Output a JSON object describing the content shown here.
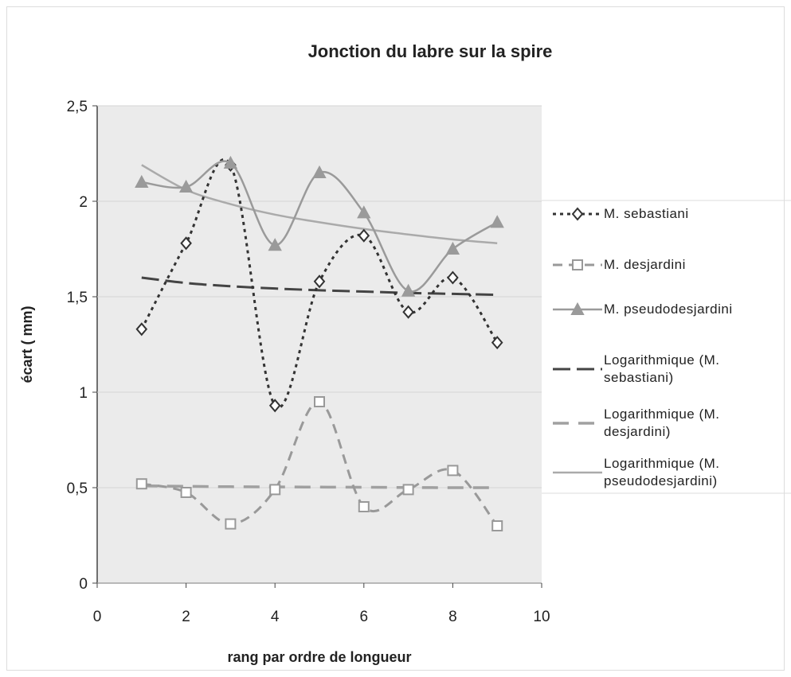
{
  "chart_data": {
    "type": "line",
    "title": "Jonction du labre sur la spire",
    "xlabel": "rang par ordre de longueur",
    "ylabel": "écart ( mm)",
    "x": [
      1,
      2,
      3,
      4,
      5,
      6,
      7,
      8,
      9
    ],
    "xlim": [
      0,
      10
    ],
    "xticks": [
      0,
      2,
      4,
      6,
      8,
      10
    ],
    "ylim": [
      0,
      2.5
    ],
    "yticks": [
      0,
      {
        "value": 0.5,
        "label": "0,5"
      },
      1,
      {
        "value": 1.5,
        "label": "1,5"
      },
      2,
      {
        "value": 2.5,
        "label": "2,5"
      }
    ],
    "grid": true,
    "legend": "right",
    "series": [
      {
        "name": "M. sebastiani",
        "color": "#333333",
        "dash": "4 5",
        "marker": "diamond",
        "width": 3,
        "values": [
          1.33,
          1.78,
          2.19,
          0.93,
          1.58,
          1.82,
          1.42,
          1.6,
          1.26
        ]
      },
      {
        "name": "M. desjardini",
        "color": "#999999",
        "dash": "12 8",
        "marker": "square",
        "width": 3,
        "values": [
          0.52,
          0.475,
          0.31,
          0.49,
          0.95,
          0.4,
          0.49,
          0.59,
          0.3
        ]
      },
      {
        "name": "M. pseudodesjardini",
        "color": "#9a9a9a",
        "dash": "",
        "marker": "triangle",
        "width": 2.5,
        "values": [
          2.1,
          2.075,
          2.2,
          1.77,
          2.15,
          1.94,
          1.53,
          1.75,
          1.89
        ]
      },
      {
        "name": "Logarithmique (M. sebastiani)",
        "color": "#444444",
        "dash": "22 8",
        "marker": null,
        "width": 3,
        "values": [
          1.6,
          1.572,
          1.555,
          1.543,
          1.534,
          1.527,
          1.52,
          1.515,
          1.51
        ]
      },
      {
        "name": "Logarithmique (M. desjardini)",
        "color": "#a0a0a0",
        "dash": "20 12",
        "marker": null,
        "width": 3.5,
        "values": [
          0.51,
          0.507,
          0.505,
          0.504,
          0.503,
          0.502,
          0.501,
          0.5,
          0.5
        ]
      },
      {
        "name": "Logarithmique (M. pseudodesjardini)",
        "color": "#aaaaaa",
        "dash": "",
        "marker": null,
        "width": 2.5,
        "values": [
          2.19,
          2.06,
          1.985,
          1.93,
          1.89,
          1.855,
          1.826,
          1.8,
          1.78
        ]
      }
    ]
  }
}
